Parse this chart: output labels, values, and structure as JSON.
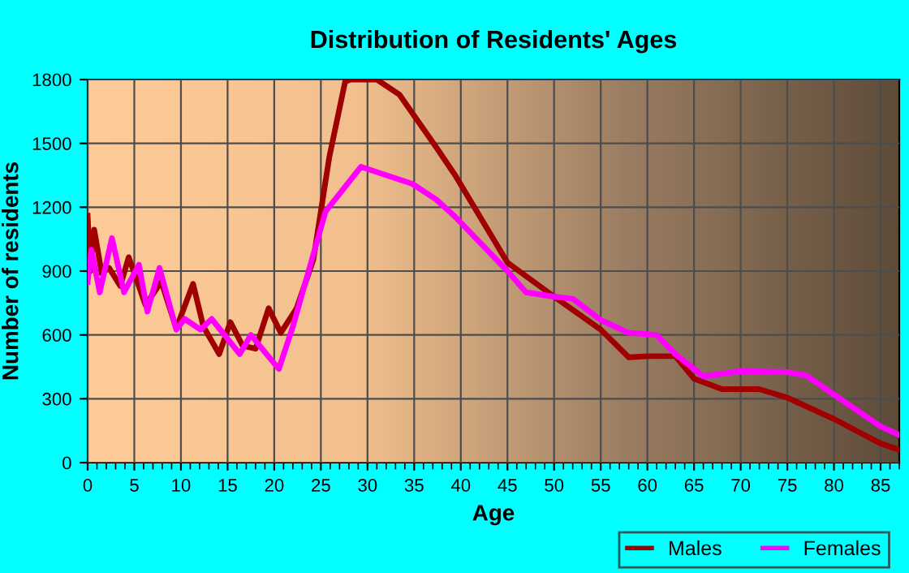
{
  "chart_data": {
    "type": "line",
    "title": "Distribution of Residents' Ages",
    "xlabel": "Age",
    "ylabel": "Number of residents",
    "xlim": [
      0,
      87
    ],
    "xticks": [
      0,
      5,
      10,
      15,
      20,
      25,
      30,
      35,
      40,
      45,
      50,
      55,
      60,
      65,
      70,
      75,
      80,
      85
    ],
    "ylim": [
      0,
      1800
    ],
    "yticks": [
      0,
      300,
      600,
      900,
      1200,
      1500,
      1800
    ],
    "grid": true,
    "legend": "bottom right",
    "marker": "none",
    "line_style": "solid",
    "series": [
      {
        "name": "Males",
        "color": "#a00000",
        "x": [
          0,
          0.3,
          0.7,
          1.5,
          2.3,
          3.5,
          4.4,
          6.2,
          7.9,
          9.5,
          11.3,
          12.4,
          14.1,
          15.3,
          16.6,
          18,
          19.4,
          20.7,
          22.4,
          24.2,
          25.9,
          27.6,
          28.2,
          31,
          33.4,
          37.4,
          39.4,
          45,
          50,
          55,
          58,
          60,
          63,
          65,
          68,
          72,
          75,
          80,
          85,
          87
        ],
        "values": [
          1160,
          900,
          1095,
          890,
          915,
          830,
          965,
          740,
          850,
          630,
          840,
          640,
          510,
          660,
          550,
          535,
          725,
          610,
          725,
          955,
          1435,
          1790,
          1800,
          1800,
          1730,
          1480,
          1350,
          940,
          780,
          625,
          495,
          500,
          500,
          395,
          345,
          345,
          305,
          205,
          90,
          60
        ]
      },
      {
        "name": "Females",
        "color": "#ff00ff",
        "x": [
          0,
          0.4,
          1.3,
          2.6,
          3.9,
          5.5,
          6.4,
          7.7,
          9.5,
          10.4,
          12.1,
          13.3,
          16.3,
          17.5,
          18.7,
          20.5,
          22,
          25.5,
          29.3,
          34.8,
          37.4,
          39.4,
          45,
          47,
          50,
          52,
          55,
          58,
          61,
          63,
          66,
          70,
          75,
          77,
          80,
          85,
          87
        ],
        "values": [
          850,
          1000,
          800,
          1055,
          800,
          930,
          710,
          915,
          625,
          675,
          625,
          675,
          510,
          600,
          535,
          440,
          640,
          1180,
          1390,
          1310,
          1235,
          1155,
          900,
          800,
          780,
          770,
          670,
          610,
          600,
          510,
          405,
          430,
          425,
          410,
          320,
          170,
          130
        ]
      }
    ]
  }
}
